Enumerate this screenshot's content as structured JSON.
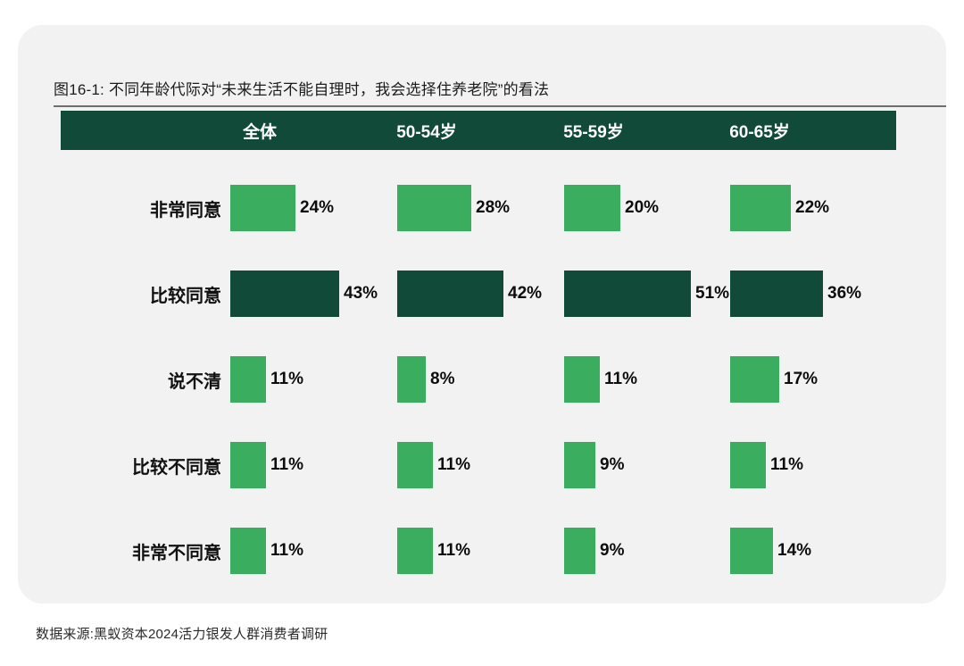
{
  "page": {
    "title": "图16-1: 不同年龄代际对“未来生活不能自理时，我会选择住养老院”的看法",
    "source": "数据来源:黑蚁资本2024活力银发人群消费者调研"
  },
  "colors": {
    "dark_green": "#114A38",
    "light_green": "#3BAD5E",
    "card_background": "#F2F2F2",
    "header_text": "#FFFFFF",
    "body_text": "#111111"
  },
  "chart_data": {
    "type": "bar",
    "orientation": "horizontal",
    "title": "图16-1: 不同年龄代际对“未来生活不能自理时，我会选择住养老院”的看法",
    "unit": "%",
    "group_headers": [
      "全体",
      "50-54岁",
      "55-59岁",
      "60-65岁"
    ],
    "categories": [
      "非常同意",
      "比较同意",
      "说不清",
      "比较不同意",
      "非常不同意"
    ],
    "series": [
      {
        "name": "全体",
        "values": [
          24,
          43,
          11,
          11,
          11
        ]
      },
      {
        "name": "50-54岁",
        "values": [
          28,
          42,
          8,
          11,
          11
        ]
      },
      {
        "name": "55-59岁",
        "values": [
          20,
          51,
          11,
          9,
          9
        ]
      },
      {
        "name": "60-65岁",
        "values": [
          22,
          36,
          17,
          11,
          14
        ]
      }
    ],
    "value_labels": "right_of_bar",
    "highlight_category": "比较同意",
    "highlight_color": "#114A38",
    "default_bar_color": "#3BAD5E",
    "legend": "none",
    "grid": "off",
    "source": "数据来源:黑蚁资本2024活力银发人群消费者调研"
  }
}
